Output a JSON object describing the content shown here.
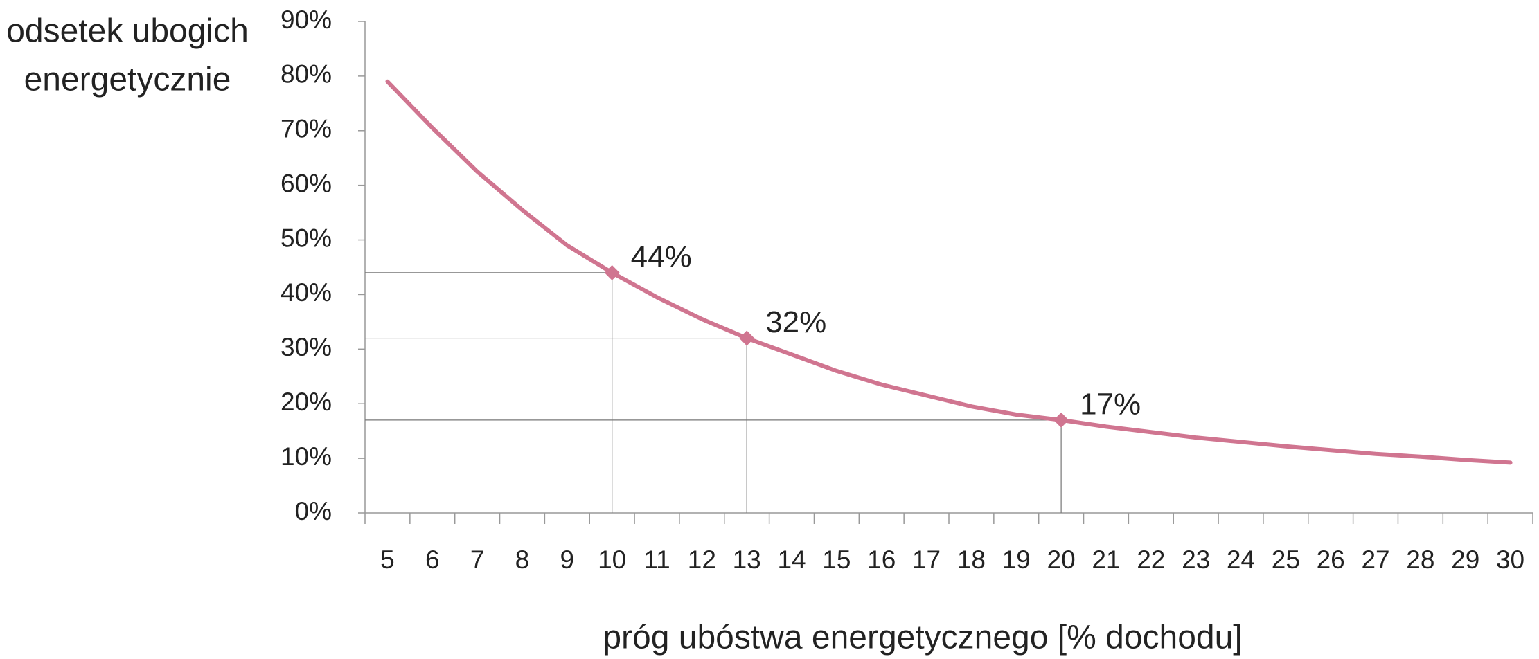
{
  "chart_data": {
    "type": "line",
    "y_label": [
      "odsetek ubogich",
      "energetycznie"
    ],
    "x_label": "próg ubóstwa energetycznego [% dochodu]",
    "categories": [
      "5",
      "6",
      "7",
      "8",
      "9",
      "10",
      "11",
      "12",
      "13",
      "14",
      "15",
      "16",
      "17",
      "18",
      "19",
      "20",
      "21",
      "22",
      "23",
      "24",
      "25",
      "26",
      "27",
      "28",
      "29",
      "30"
    ],
    "series": [
      {
        "color": "#d07590",
        "values": [
          79,
          70.5,
          62.5,
          55.5,
          49,
          44,
          39.5,
          35.5,
          32,
          29,
          26,
          23.5,
          21.5,
          19.5,
          18,
          17,
          15.8,
          14.8,
          13.8,
          13,
          12.2,
          11.5,
          10.8,
          10.3,
          9.7,
          9.2
        ],
        "value_labels": [
          null,
          null,
          null,
          null,
          null,
          "44%",
          null,
          null,
          "32%",
          null,
          null,
          null,
          null,
          null,
          null,
          "17%",
          null,
          null,
          null,
          null,
          null,
          null,
          null,
          null,
          null,
          null
        ]
      }
    ],
    "ylim": [
      0,
      90
    ],
    "yticks": [
      {
        "value": 0,
        "label": "0%"
      },
      {
        "value": 10,
        "label": "10%"
      },
      {
        "value": 20,
        "label": "20%"
      },
      {
        "value": 30,
        "label": "30%"
      },
      {
        "value": 40,
        "label": "40%"
      },
      {
        "value": 50,
        "label": "50%"
      },
      {
        "value": 60,
        "label": "60%"
      },
      {
        "value": 70,
        "label": "70%"
      },
      {
        "value": 80,
        "label": "80%"
      },
      {
        "value": 90,
        "label": "90%"
      }
    ]
  }
}
